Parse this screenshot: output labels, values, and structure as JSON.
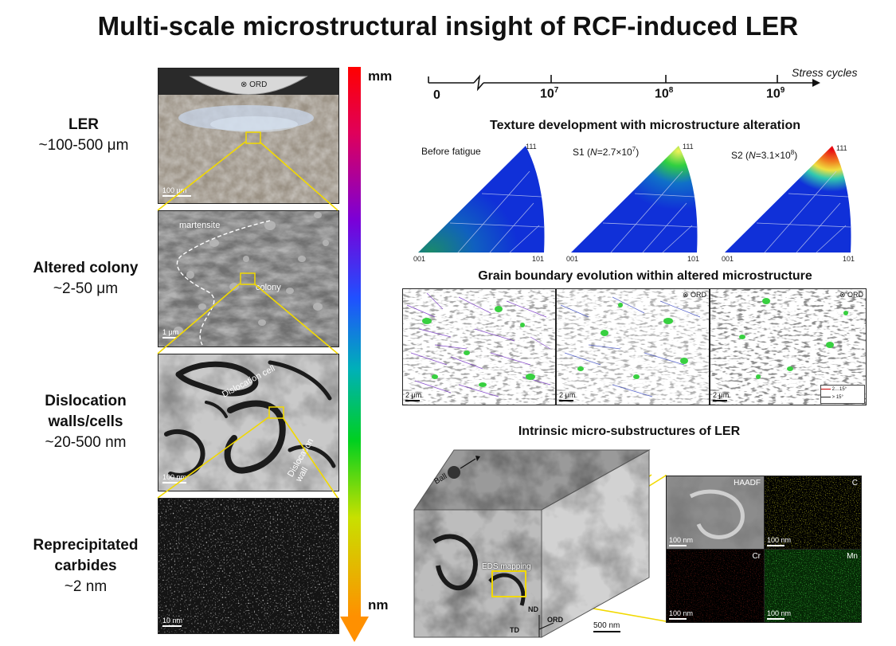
{
  "title": "Multi-scale microstructural insight of RCF-induced LER",
  "levels": [
    {
      "name": "LER",
      "size": "~100-500 μm",
      "scale_bar": "100 μm"
    },
    {
      "name_line1": "Altered colony",
      "size": "~2-50 μm",
      "scale_bar": "1 μm",
      "annot_a": "martensite",
      "annot_b": "colony"
    },
    {
      "name_line1": "Dislocation",
      "name_line2": "walls/cells",
      "size": "~20-500 nm",
      "scale_bar": "100 nm",
      "annot_a": "Dislocation cell",
      "annot_b": "Dislocation wall"
    },
    {
      "name_line1": "Reprecipitated",
      "name_line2": "carbides",
      "size": "~2 nm",
      "scale_bar": "10 nm"
    }
  ],
  "top_panel_tag": "⊗ ORD",
  "scale_arrow": {
    "top": "mm",
    "bottom": "nm"
  },
  "stress_axis": {
    "label": "Stress cycles",
    "ticks": [
      "0",
      "10",
      "10",
      "10"
    ],
    "exponents": [
      "",
      "7",
      "8",
      "9"
    ]
  },
  "texture": {
    "heading": "Texture development with microstructure alteration",
    "panels": [
      {
        "label": "Before fatigue",
        "corner_top": "111",
        "corner_left": "001",
        "corner_right": "101"
      },
      {
        "label_prefix": "S1 (",
        "label_n": "N",
        "label_val": "=2.7×10",
        "label_exp": "7",
        "label_suffix": ")",
        "corner_top": "111",
        "corner_left": "001",
        "corner_right": "101"
      },
      {
        "label_prefix": "S2 (",
        "label_n": "N",
        "label_val": "=3.1×10",
        "label_exp": "8",
        "label_suffix": ")",
        "corner_top": "111",
        "corner_left": "001",
        "corner_right": "101"
      }
    ]
  },
  "grain": {
    "heading": "Grain boundary evolution within altered microstructure",
    "scale_bar": "2 μm",
    "tag": "⊗ ORD",
    "legend": [
      "2…15°",
      "> 15°"
    ]
  },
  "intrinsic": {
    "heading": "Intrinsic micro-substructures of LER",
    "ball": "Ball",
    "eds": "EDS mapping",
    "axes": [
      "ND",
      "ORD",
      "TD"
    ],
    "scale_bar": "500 nm",
    "maps": [
      {
        "label": "HAADF",
        "scale_bar": "100 nm"
      },
      {
        "label": "C",
        "scale_bar": "100 nm"
      },
      {
        "label": "Cr",
        "scale_bar": "100 nm"
      },
      {
        "label": "Mn",
        "scale_bar": "100 nm"
      }
    ]
  },
  "colors": {
    "highlight": "#f2d900",
    "ipf_base": "#1030d8"
  }
}
